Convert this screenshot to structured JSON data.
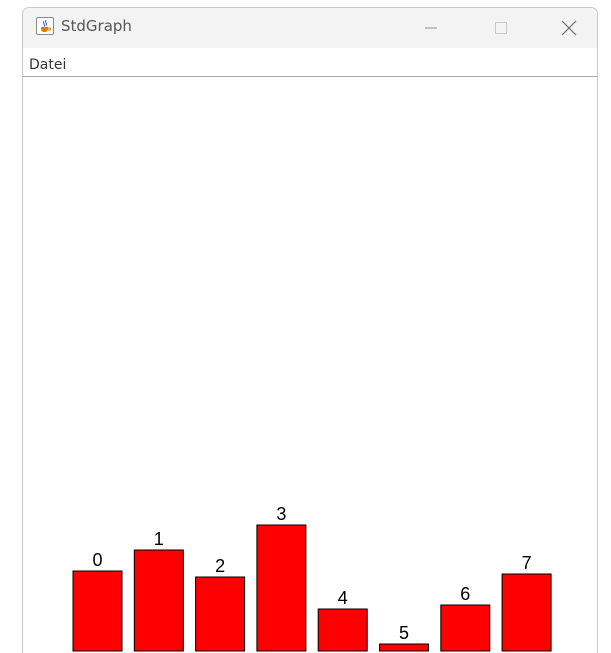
{
  "window": {
    "title": "StdGraph",
    "icon": "java-cup-icon",
    "controls": [
      "minimize-icon",
      "maximize-icon",
      "close-icon"
    ]
  },
  "menu": {
    "items": [
      {
        "label": "Datei"
      }
    ]
  },
  "colors": {
    "bar_fill": "#ff0000",
    "bar_stroke": "#000000",
    "label_color": "#000000"
  },
  "chart_data": {
    "type": "bar",
    "categories": [
      "0",
      "1",
      "2",
      "3",
      "4",
      "5",
      "6",
      "7"
    ],
    "values": [
      80,
      101,
      74,
      126,
      42,
      7,
      46,
      77
    ],
    "title": "",
    "xlabel": "",
    "ylabel": "",
    "ylim": [
      0,
      550
    ]
  }
}
